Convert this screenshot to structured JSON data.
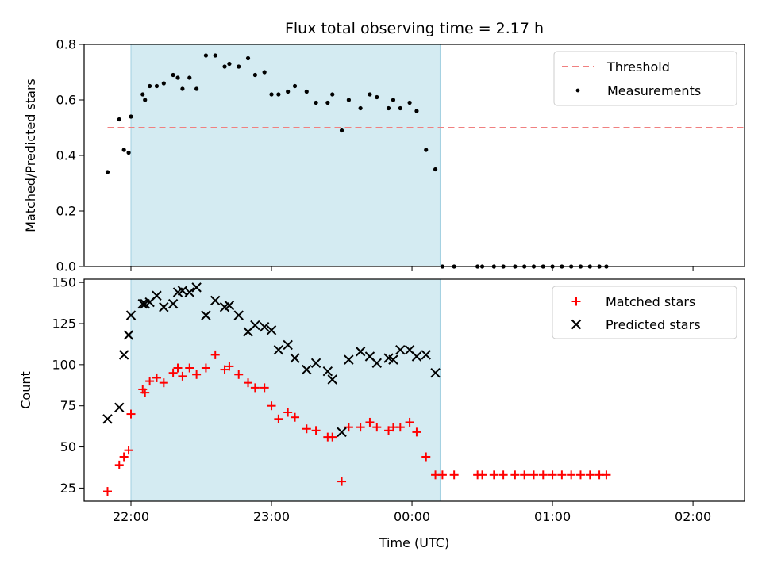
{
  "chart_data": [
    {
      "type": "scatter",
      "title": "Flux total observing time = 2.17 h",
      "xlabel": "",
      "ylabel": "Matched/Predicted stars",
      "xlim": [
        "21:40",
        "02:22"
      ],
      "ylim": [
        0,
        0.8
      ],
      "yticks": [
        "0.0",
        "0.2",
        "0.4",
        "0.6",
        "0.8"
      ],
      "shaded_interval": [
        "22:00",
        "00:12"
      ],
      "legend": "top-right",
      "threshold": {
        "name": "Threshold",
        "value": 0.5,
        "x": [
          "21:50",
          "02:23"
        ],
        "color": "#f08080"
      },
      "series": [
        {
          "name": "Measurements",
          "color": "#000000",
          "points": [
            [
              "21:50",
              0.34
            ],
            [
              "21:55",
              0.53
            ],
            [
              "22:00",
              0.54
            ],
            [
              "21:57",
              0.42
            ],
            [
              "21:59",
              0.41
            ],
            [
              "22:05",
              0.62
            ],
            [
              "22:06",
              0.6
            ],
            [
              "22:08",
              0.65
            ],
            [
              "22:11",
              0.65
            ],
            [
              "22:14",
              0.66
            ],
            [
              "22:18",
              0.69
            ],
            [
              "22:20",
              0.68
            ],
            [
              "22:22",
              0.64
            ],
            [
              "22:25",
              0.68
            ],
            [
              "22:28",
              0.64
            ],
            [
              "22:32",
              0.76
            ],
            [
              "22:36",
              0.76
            ],
            [
              "22:40",
              0.72
            ],
            [
              "22:42",
              0.73
            ],
            [
              "22:46",
              0.72
            ],
            [
              "22:50",
              0.75
            ],
            [
              "22:53",
              0.69
            ],
            [
              "22:57",
              0.7
            ],
            [
              "23:00",
              0.62
            ],
            [
              "23:03",
              0.62
            ],
            [
              "23:07",
              0.63
            ],
            [
              "23:10",
              0.65
            ],
            [
              "23:15",
              0.63
            ],
            [
              "23:19",
              0.59
            ],
            [
              "23:24",
              0.59
            ],
            [
              "23:26",
              0.62
            ],
            [
              "23:30",
              0.49
            ],
            [
              "23:33",
              0.6
            ],
            [
              "23:38",
              0.57
            ],
            [
              "23:42",
              0.62
            ],
            [
              "23:45",
              0.61
            ],
            [
              "23:50",
              0.57
            ],
            [
              "23:52",
              0.6
            ],
            [
              "23:55",
              0.57
            ],
            [
              "23:59",
              0.59
            ],
            [
              "00:02",
              0.56
            ],
            [
              "00:06",
              0.42
            ],
            [
              "00:10",
              0.35
            ],
            [
              "00:13",
              0.0
            ],
            [
              "00:18",
              0.0
            ],
            [
              "00:28",
              0.0
            ],
            [
              "00:30",
              0.0
            ],
            [
              "00:35",
              0.0
            ],
            [
              "00:39",
              0.0
            ],
            [
              "00:44",
              0.0
            ],
            [
              "00:48",
              0.0
            ],
            [
              "00:52",
              0.0
            ],
            [
              "00:56",
              0.0
            ],
            [
              "01:00",
              0.0
            ],
            [
              "01:04",
              0.0
            ],
            [
              "01:08",
              0.0
            ],
            [
              "01:12",
              0.0
            ],
            [
              "01:16",
              0.0
            ],
            [
              "01:20",
              0.0
            ],
            [
              "01:23",
              0.0
            ]
          ]
        }
      ]
    },
    {
      "type": "scatter",
      "title": "",
      "xlabel": "Time (UTC)",
      "ylabel": "Count",
      "xticks": [
        "22:00",
        "23:00",
        "00:00",
        "01:00",
        "02:00"
      ],
      "ylim": [
        17,
        152
      ],
      "yticks": [
        "25",
        "50",
        "75",
        "100",
        "125",
        "150"
      ],
      "shaded_interval": [
        "22:00",
        "00:12"
      ],
      "legend": "top-right",
      "series": [
        {
          "name": "Matched stars",
          "marker": "+",
          "color": "#ff0000",
          "points": [
            [
              "21:50",
              23
            ],
            [
              "21:55",
              39
            ],
            [
              "21:57",
              44
            ],
            [
              "21:59",
              48
            ],
            [
              "22:00",
              70
            ],
            [
              "22:05",
              85
            ],
            [
              "22:06",
              83
            ],
            [
              "22:08",
              90
            ],
            [
              "22:11",
              92
            ],
            [
              "22:14",
              89
            ],
            [
              "22:18",
              95
            ],
            [
              "22:20",
              98
            ],
            [
              "22:22",
              93
            ],
            [
              "22:25",
              98
            ],
            [
              "22:28",
              94
            ],
            [
              "22:32",
              98
            ],
            [
              "22:36",
              106
            ],
            [
              "22:40",
              97
            ],
            [
              "22:42",
              99
            ],
            [
              "22:46",
              94
            ],
            [
              "22:50",
              89
            ],
            [
              "22:53",
              86
            ],
            [
              "22:57",
              86
            ],
            [
              "23:00",
              75
            ],
            [
              "23:03",
              67
            ],
            [
              "23:07",
              71
            ],
            [
              "23:10",
              68
            ],
            [
              "23:15",
              61
            ],
            [
              "23:19",
              60
            ],
            [
              "23:24",
              56
            ],
            [
              "23:26",
              56
            ],
            [
              "23:30",
              29
            ],
            [
              "23:33",
              62
            ],
            [
              "23:38",
              62
            ],
            [
              "23:42",
              65
            ],
            [
              "23:45",
              62
            ],
            [
              "23:50",
              60
            ],
            [
              "23:52",
              62
            ],
            [
              "23:55",
              62
            ],
            [
              "23:59",
              65
            ],
            [
              "00:02",
              59
            ],
            [
              "00:06",
              44
            ],
            [
              "00:10",
              33
            ],
            [
              "00:13",
              33
            ],
            [
              "00:18",
              33
            ],
            [
              "00:28",
              33
            ],
            [
              "00:30",
              33
            ],
            [
              "00:35",
              33
            ],
            [
              "00:39",
              33
            ],
            [
              "00:44",
              33
            ],
            [
              "00:48",
              33
            ],
            [
              "00:52",
              33
            ],
            [
              "00:56",
              33
            ],
            [
              "01:00",
              33
            ],
            [
              "01:04",
              33
            ],
            [
              "01:08",
              33
            ],
            [
              "01:12",
              33
            ],
            [
              "01:16",
              33
            ],
            [
              "01:20",
              33
            ],
            [
              "01:23",
              33
            ]
          ]
        },
        {
          "name": "Predicted stars",
          "marker": "x",
          "color": "#000000",
          "points": [
            [
              "21:50",
              67
            ],
            [
              "21:55",
              74
            ],
            [
              "21:57",
              106
            ],
            [
              "21:59",
              118
            ],
            [
              "22:00",
              130
            ],
            [
              "22:05",
              137
            ],
            [
              "22:06",
              137
            ],
            [
              "22:08",
              138
            ],
            [
              "22:11",
              142
            ],
            [
              "22:14",
              135
            ],
            [
              "22:18",
              137
            ],
            [
              "22:20",
              144
            ],
            [
              "22:22",
              145
            ],
            [
              "22:25",
              144
            ],
            [
              "22:28",
              147
            ],
            [
              "22:32",
              130
            ],
            [
              "22:36",
              139
            ],
            [
              "22:40",
              135
            ],
            [
              "22:42",
              136
            ],
            [
              "22:46",
              130
            ],
            [
              "22:50",
              120
            ],
            [
              "22:53",
              124
            ],
            [
              "22:57",
              123
            ],
            [
              "23:00",
              121
            ],
            [
              "23:03",
              109
            ],
            [
              "23:07",
              112
            ],
            [
              "23:10",
              104
            ],
            [
              "23:15",
              97
            ],
            [
              "23:19",
              101
            ],
            [
              "23:24",
              96
            ],
            [
              "23:26",
              91
            ],
            [
              "23:30",
              59
            ],
            [
              "23:33",
              103
            ],
            [
              "23:38",
              108
            ],
            [
              "23:42",
              105
            ],
            [
              "23:45",
              101
            ],
            [
              "23:50",
              104
            ],
            [
              "23:52",
              103
            ],
            [
              "23:55",
              109
            ],
            [
              "23:59",
              109
            ],
            [
              "00:02",
              105
            ],
            [
              "00:06",
              106
            ],
            [
              "00:10",
              95
            ]
          ]
        }
      ]
    }
  ]
}
